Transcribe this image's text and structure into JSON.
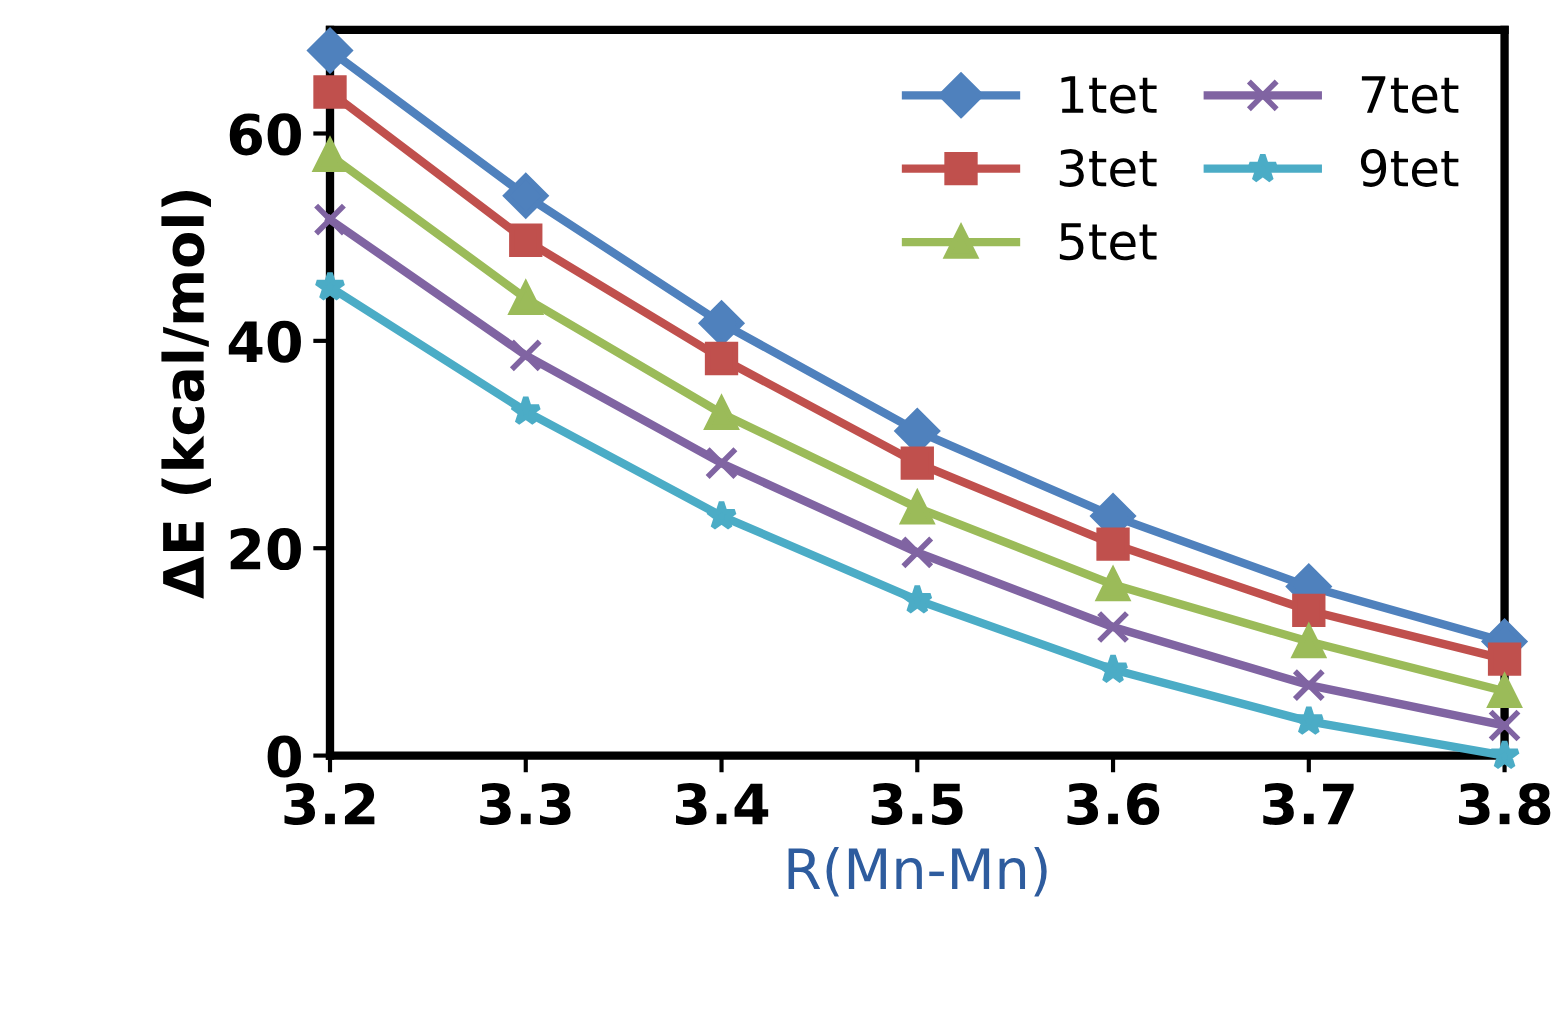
{
  "chart_data": {
    "type": "line",
    "xlabel": "R(Mn-Mn)",
    "ylabel": "ΔE (kcal/mol)",
    "x": [
      3.2,
      3.3,
      3.4,
      3.5,
      3.6,
      3.7,
      3.8
    ],
    "xlim": [
      3.2,
      3.8
    ],
    "xticks": [
      3.2,
      3.3,
      3.4,
      3.5,
      3.6,
      3.7,
      3.8
    ],
    "ylim": [
      0,
      70
    ],
    "yticks": [
      0,
      20,
      40,
      60
    ],
    "legend": "top right",
    "series": [
      {
        "name": "1tet",
        "color": "#4f81bd",
        "marker": "diamond",
        "values": [
          68,
          54,
          41.7,
          31.3,
          23.1,
          16.3,
          11
        ]
      },
      {
        "name": "3tet",
        "color": "#c0504d",
        "marker": "square",
        "values": [
          64,
          49.7,
          38.3,
          28.2,
          20.4,
          14,
          9.3
        ]
      },
      {
        "name": "5tet",
        "color": "#9bbb59",
        "marker": "triangle",
        "values": [
          57.9,
          44.1,
          33,
          23.9,
          16.5,
          11,
          6.2
        ]
      },
      {
        "name": "7tet",
        "color": "#8064a2",
        "marker": "cross",
        "values": [
          51.7,
          38.6,
          28.2,
          19.6,
          12.4,
          6.8,
          2.9
        ]
      },
      {
        "name": "9tet",
        "color": "#4bacc6",
        "marker": "star",
        "values": [
          45.2,
          33.2,
          23.1,
          15,
          8.3,
          3.3,
          0
        ]
      }
    ]
  }
}
